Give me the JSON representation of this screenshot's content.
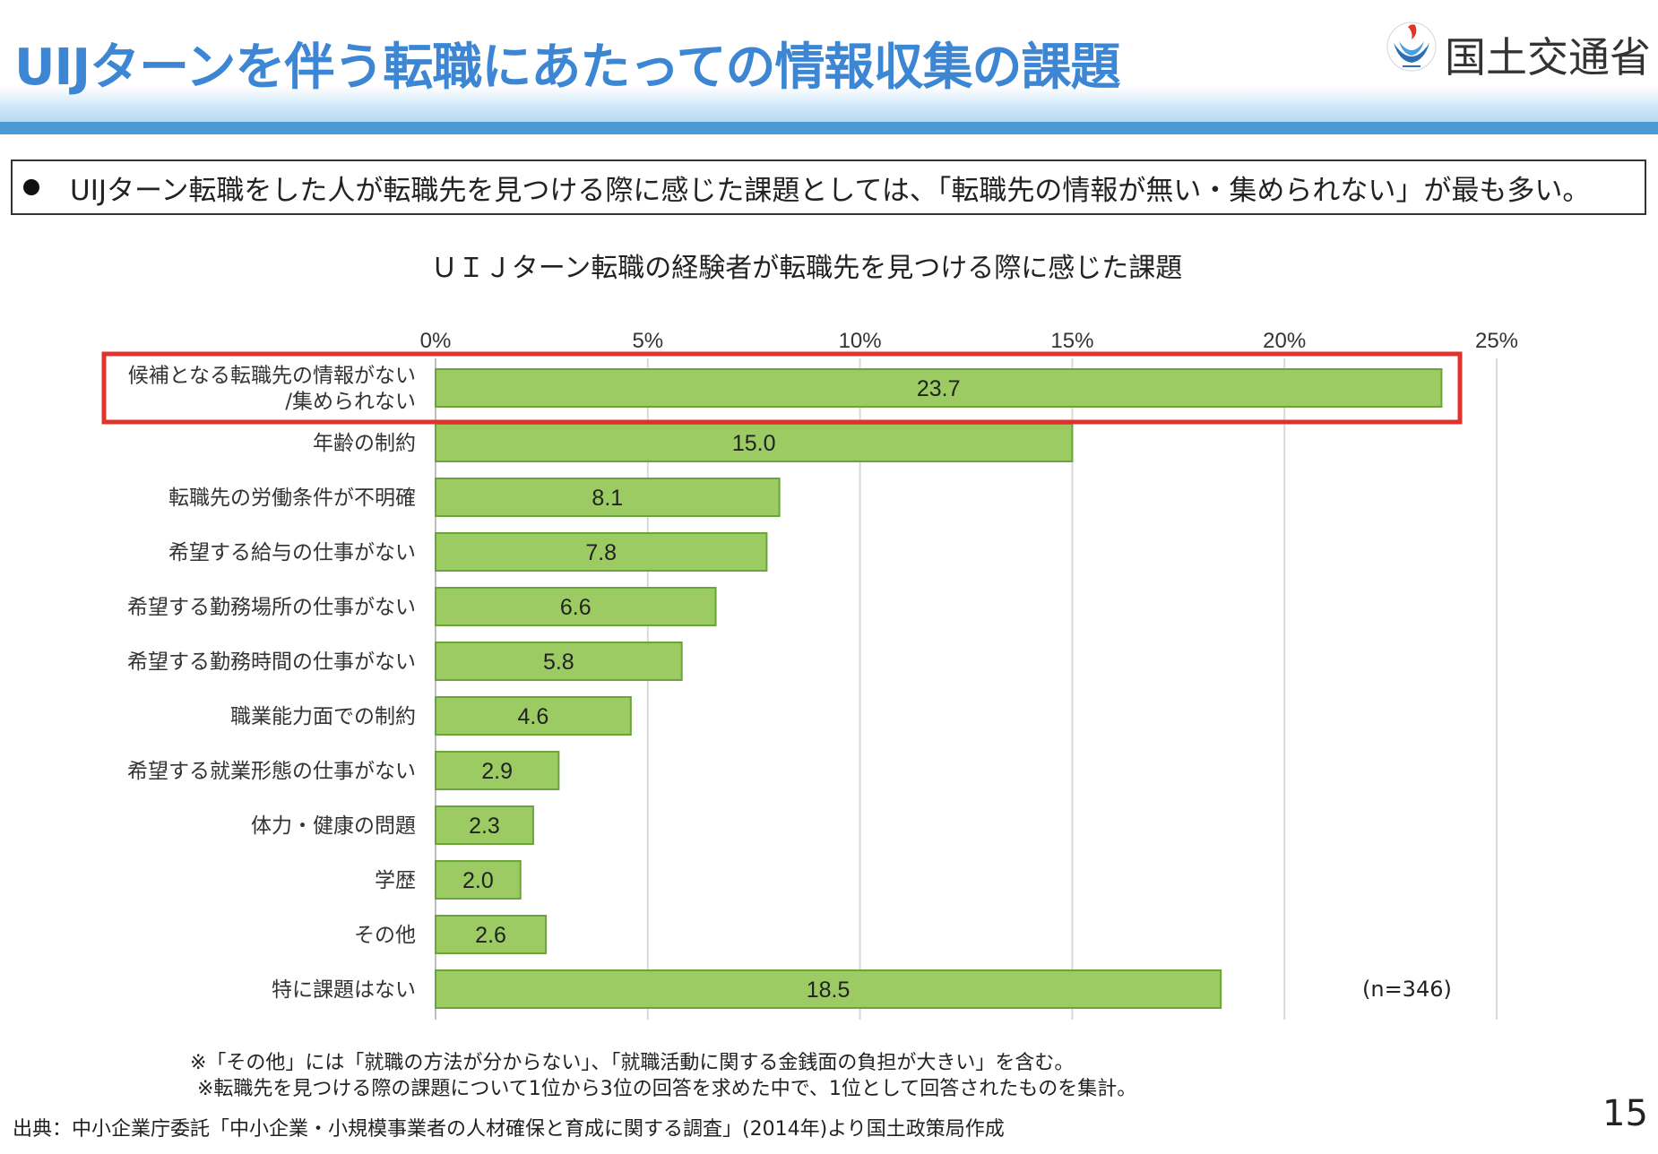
{
  "header": {
    "title": "UIJターンを伴う転職にあたっての情報収集の課題",
    "ministry": "国土交通省"
  },
  "summary": "UIJターン転職をした人が転職先を見つける際に感じた課題としては、「転職先の情報が無い・集められない」が最も多い。",
  "chart_data": {
    "type": "bar",
    "orientation": "horizontal",
    "title": "ＵＩＪターン転職の経験者が転職先を見つける際に感じた課題",
    "categories": [
      [
        "候補となる転職先の情報がない",
        "/集められない"
      ],
      [
        "年齢の制約"
      ],
      [
        "転職先の労働条件が不明確"
      ],
      [
        "希望する給与の仕事がない"
      ],
      [
        "希望する勤務場所の仕事がない"
      ],
      [
        "希望する勤務時間の仕事がない"
      ],
      [
        "職業能力面での制約"
      ],
      [
        "希望する就業形態の仕事がない"
      ],
      [
        "体力・健康の問題"
      ],
      [
        "学歴"
      ],
      [
        "その他"
      ],
      [
        "特に課題はない"
      ]
    ],
    "values": [
      23.7,
      15.0,
      8.1,
      7.8,
      6.6,
      5.8,
      4.6,
      2.9,
      2.3,
      2.0,
      2.6,
      18.5
    ],
    "value_labels": [
      "23.7",
      "15.0",
      "8.1",
      "7.8",
      "6.6",
      "5.8",
      "4.6",
      "2.9",
      "2.3",
      "2.0",
      "2.6",
      "18.5"
    ],
    "xlim": [
      0,
      25
    ],
    "xticks": [
      0,
      5,
      10,
      15,
      20,
      25
    ],
    "xtick_labels": [
      "0%",
      "5%",
      "10%",
      "15%",
      "20%",
      "25%"
    ],
    "grid": true,
    "highlighted_index": 0,
    "bar_color": "#9bcb62",
    "bar_edge_color": "#6aa53a",
    "highlight_color": "#e0332b",
    "sample_note": "(n=346)"
  },
  "notes": [
    "※「その他」には「就職の方法が分からない」、「就職活動に関する金銭面の負担が大きい」を含む。",
    "※転職先を見つける際の課題について1位から3位の回答を求めた中で、1位として回答されたものを集計。"
  ],
  "source": "出典：中小企業庁委託「中小企業・小規模事業者の人材確保と育成に関する調査」(2014年)より国土政策局作成",
  "page_number": "15"
}
